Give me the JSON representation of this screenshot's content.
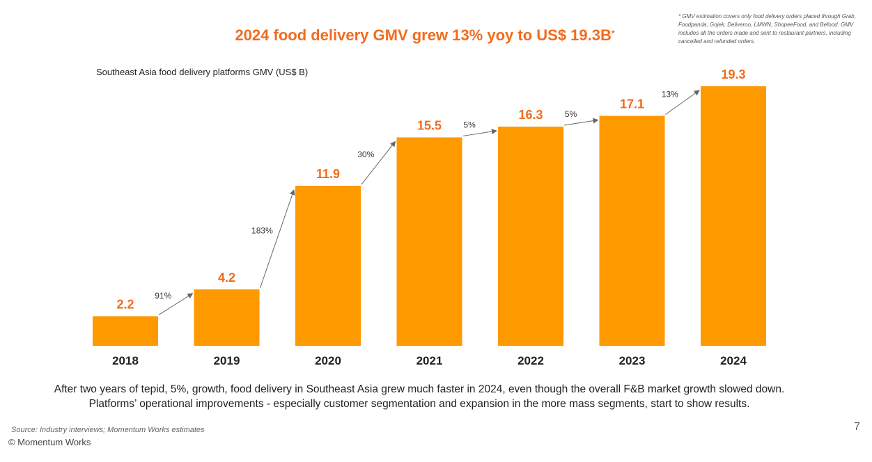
{
  "header": {
    "title": "2024 food delivery GMV grew 13% yoy to US$ 19.3B",
    "title_marker": "*",
    "footnote": "* GMV estimation covers only food delivery orders placed through Grab, Foodpanda, Gojek, Deliveroo, LMWN, ShopeeFood, and Befood. GMV includes all the orders made and sent to restaurant partners, including cancelled and refunded orders."
  },
  "chart_data": {
    "type": "bar",
    "title": "2024 food delivery GMV grew 13% yoy to US$ 19.3B",
    "subtitle": "Southeast Asia food delivery platforms GMV (US$ B)",
    "categories": [
      "2018",
      "2019",
      "2020",
      "2021",
      "2022",
      "2023",
      "2024"
    ],
    "values": [
      2.2,
      4.2,
      11.9,
      15.5,
      16.3,
      17.1,
      19.3
    ],
    "value_labels": [
      "2.2",
      "4.2",
      "11.9",
      "15.5",
      "16.3",
      "17.1",
      "19.3"
    ],
    "growth_labels": [
      "91%",
      "183%",
      "30%",
      "5%",
      "5%",
      "13%"
    ],
    "bar_color": "#ff9900",
    "label_color": "#f26b1d",
    "ylim": [
      0,
      19.3
    ],
    "grid": false,
    "xlabel": "",
    "ylabel": ""
  },
  "caption": {
    "line1": "After two years of tepid, 5%, growth, food delivery in Southeast Asia grew much faster in 2024, even though the overall F&B market growth slowed down.",
    "line2": "Platforms’ operational improvements - especially customer segmentation and expansion in the more mass segments, start to show results."
  },
  "footer": {
    "source": "Source: Industry interviews; Momentum Works estimates",
    "copyright": "© Momentum Works",
    "page_number": "7"
  }
}
